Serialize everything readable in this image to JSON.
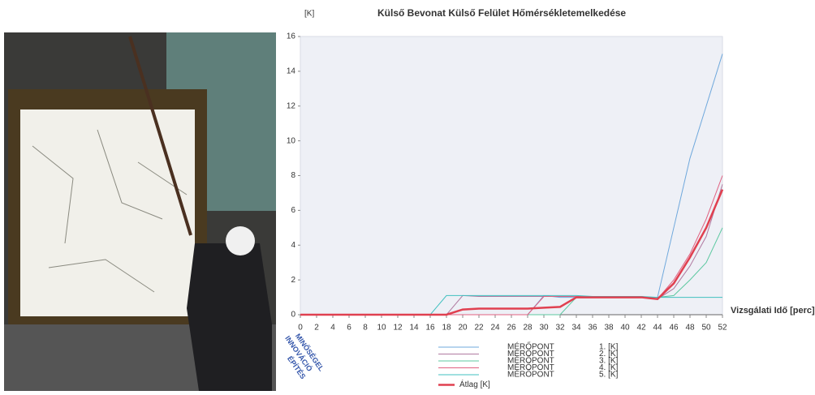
{
  "chart_data": {
    "type": "line",
    "title": "Külső Bevonat Külső  Felület Hőmérsékletemelkedése",
    "y_label": "[K]",
    "x_label": "Vizsgálati Idő [perc]",
    "watermark": [
      "INNOVÁCIÓ",
      "MINŐSÉGEL",
      "ÉPÍTÉS"
    ],
    "x": [
      0,
      2,
      4,
      6,
      8,
      10,
      12,
      14,
      16,
      18,
      20,
      22,
      24,
      26,
      28,
      30,
      32,
      34,
      36,
      38,
      40,
      42,
      44,
      46,
      48,
      50,
      52
    ],
    "series": [
      {
        "name": "MÉRŐPONT",
        "id": "1. [K]",
        "color": "#6fa8dc",
        "width": 1,
        "values": [
          0,
          0,
          0,
          0,
          0,
          0,
          0,
          0,
          0,
          0,
          0,
          0,
          0,
          0,
          0,
          1.1,
          1.0,
          1.0,
          1.0,
          1.0,
          1.0,
          1.0,
          1.0,
          5,
          9,
          12,
          15
        ]
      },
      {
        "name": "MÉRŐPONT",
        "id": "2. [K]",
        "color": "#b07aa1",
        "width": 1,
        "values": [
          0,
          0,
          0,
          0,
          0,
          0,
          0,
          0,
          0,
          0,
          1.1,
          1.05,
          1.05,
          1.05,
          1.05,
          1.05,
          1.05,
          1.05,
          1.05,
          1.05,
          1.05,
          1.05,
          0.9,
          1.5,
          2.8,
          4.5,
          7.5
        ]
      },
      {
        "name": "MÉRŐPONT",
        "id": "3. [K]",
        "color": "#5cc8a0",
        "width": 1,
        "values": [
          0,
          0,
          0,
          0,
          0,
          0,
          0,
          0,
          0,
          0,
          0,
          0,
          0,
          0,
          0,
          0,
          0,
          1.0,
          1.0,
          1.0,
          1.0,
          1.0,
          1.0,
          1.1,
          2,
          3,
          5
        ]
      },
      {
        "name": "MÉRŐPONT",
        "id": "4. [K]",
        "color": "#e06080",
        "width": 1,
        "values": [
          0,
          0,
          0,
          0,
          0,
          0,
          0,
          0,
          0,
          0,
          0,
          0,
          0,
          0,
          0,
          1.05,
          1.05,
          1.05,
          1.05,
          1.05,
          1.05,
          1.05,
          0.9,
          2,
          3.5,
          5.5,
          8
        ]
      },
      {
        "name": "MÉRŐPONT",
        "id": "5. [K]",
        "color": "#40c0c0",
        "width": 1,
        "values": [
          0,
          0,
          0,
          0,
          0,
          0,
          0,
          0,
          0,
          1.1,
          1.1,
          1.1,
          1.1,
          1.1,
          1.1,
          1.1,
          1.1,
          1.1,
          1.05,
          1.05,
          1.05,
          1.05,
          1.0,
          1.0,
          1.0,
          1.0,
          1.0
        ]
      },
      {
        "name": "Átlag [K]",
        "color": "#e04050",
        "width": 2.5,
        "values": [
          0,
          0,
          0,
          0,
          0,
          0,
          0,
          0,
          0,
          0,
          0.3,
          0.35,
          0.35,
          0.35,
          0.35,
          0.4,
          0.45,
          1.0,
          1.0,
          1.0,
          1.0,
          1.0,
          0.9,
          1.8,
          3.3,
          5,
          7.2
        ]
      }
    ],
    "xlim": [
      0,
      52
    ],
    "xticks": [
      0,
      2,
      4,
      6,
      8,
      10,
      12,
      14,
      16,
      18,
      20,
      22,
      24,
      26,
      28,
      30,
      32,
      34,
      36,
      38,
      40,
      42,
      44,
      46,
      48,
      50,
      52
    ],
    "ylim": [
      0,
      16
    ],
    "yticks": [
      0,
      2,
      4,
      6,
      8,
      10,
      12,
      14,
      16
    ],
    "grid": false
  }
}
